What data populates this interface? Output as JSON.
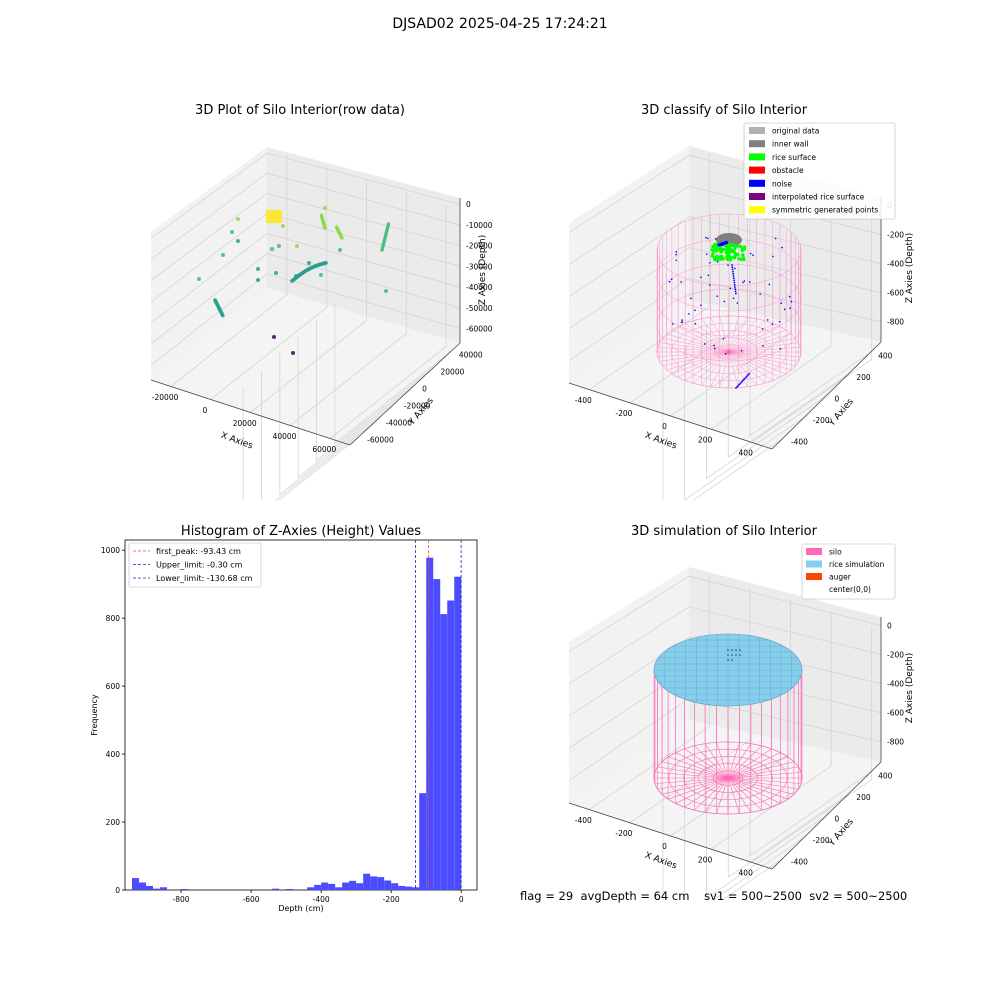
{
  "suptitle": "DJSAD02 2025-04-25 17:24:21",
  "footer": {
    "flag": "flag = 29",
    "avg_depth": "avgDepth = 64 cm",
    "sv1": "sv1 = 500~2500",
    "sv2": "sv2 = 500~2500"
  },
  "colors": {
    "hist_bar": "#4c4cff",
    "peak_line": "#ff4040",
    "limit_line": "#2020cc",
    "silo": "#ff69b4",
    "rice_sim": "#87ceeb",
    "auger": "#ff4500",
    "original": "#b0b0b0",
    "inner_wall": "#808080",
    "rice_surface": "#00ff00",
    "obstacle": "#ff0000",
    "noise": "#0000ff",
    "interpolated": "#800080",
    "symmetric": "#ffff00",
    "viridis": [
      "#440154",
      "#7e4e90",
      "#2a9d8f",
      "#3fbc73",
      "#8fd744",
      "#fde725"
    ]
  },
  "chart_data": [
    {
      "type": "scatter",
      "projection": "3d",
      "title": "3D Plot of Silo Interior(row data)",
      "xlabel": "X Axies",
      "ylabel": "Y Axies",
      "zlabel": "Z Axies (Depth)",
      "x_ticks": [
        "-20000",
        "0",
        "20000",
        "40000",
        "60000"
      ],
      "y_ticks": [
        "-60000",
        "-40000",
        "-20000",
        "0",
        "20000",
        "40000"
      ],
      "z_ticks": [
        "0",
        "-10000",
        "-20000",
        "-30000",
        "-40000",
        "-50000",
        "-60000"
      ],
      "grid": true,
      "colormap": "viridis"
    },
    {
      "type": "scatter",
      "projection": "3d",
      "title": "3D classify of Silo Interior",
      "xlabel": "X Axies",
      "ylabel": "Y Axies",
      "zlabel": "Z Axies (Depth)",
      "x_ticks": [
        "-400",
        "-200",
        "0",
        "200",
        "400"
      ],
      "y_ticks": [
        "-400",
        "-200",
        "0",
        "200",
        "400"
      ],
      "z_ticks": [
        "0",
        "-200",
        "-400",
        "-600",
        "-800"
      ],
      "legend": [
        {
          "label": "original data",
          "color": "#b0b0b0"
        },
        {
          "label": "inner wall",
          "color": "#808080"
        },
        {
          "label": "rice surface",
          "color": "#00ff00"
        },
        {
          "label": "obstacle",
          "color": "#ff0000"
        },
        {
          "label": "noise",
          "color": "#0000ff"
        },
        {
          "label": "interpolated rice surface",
          "color": "#800080"
        },
        {
          "label": "symmetric generated points",
          "color": "#ffff00"
        }
      ],
      "legend_loc": "upper right",
      "grid": true
    },
    {
      "type": "bar",
      "title": "Histogram of Z-Axies (Height) Values",
      "xlabel": "Depth (cm)",
      "ylabel": "Frequency",
      "xlim": [
        -960,
        45
      ],
      "ylim": [
        0,
        1030
      ],
      "x_ticks": [
        "-800",
        "-600",
        "-400",
        "-200",
        "0"
      ],
      "x_tick_values": [
        -800,
        -600,
        -400,
        -200,
        0
      ],
      "y_ticks": [
        "0",
        "200",
        "400",
        "600",
        "800",
        "1000"
      ],
      "y_tick_values": [
        0,
        200,
        400,
        600,
        800,
        1000
      ],
      "bin_width": 20,
      "bins": [
        {
          "x": -920,
          "v": 35
        },
        {
          "x": -900,
          "v": 22
        },
        {
          "x": -880,
          "v": 12
        },
        {
          "x": -860,
          "v": 4
        },
        {
          "x": -840,
          "v": 8
        },
        {
          "x": -780,
          "v": 3
        },
        {
          "x": -520,
          "v": 4
        },
        {
          "x": -480,
          "v": 3
        },
        {
          "x": -420,
          "v": 8
        },
        {
          "x": -400,
          "v": 15
        },
        {
          "x": -380,
          "v": 22
        },
        {
          "x": -360,
          "v": 18
        },
        {
          "x": -340,
          "v": 8
        },
        {
          "x": -320,
          "v": 22
        },
        {
          "x": -300,
          "v": 27
        },
        {
          "x": -280,
          "v": 20
        },
        {
          "x": -260,
          "v": 48
        },
        {
          "x": -240,
          "v": 40
        },
        {
          "x": -220,
          "v": 38
        },
        {
          "x": -200,
          "v": 28
        },
        {
          "x": -180,
          "v": 20
        },
        {
          "x": -160,
          "v": 12
        },
        {
          "x": -140,
          "v": 10
        },
        {
          "x": -120,
          "v": 8
        },
        {
          "x": -100,
          "v": 285
        },
        {
          "x": -80,
          "v": 978
        },
        {
          "x": -60,
          "v": 915
        },
        {
          "x": -40,
          "v": 812
        },
        {
          "x": -20,
          "v": 852
        },
        {
          "x": 0,
          "v": 922
        }
      ],
      "vlines": [
        {
          "label": "first_peak: -93.43 cm",
          "x": -93.43,
          "color": "#ff4040"
        },
        {
          "label": "Upper_limit: -0.30 cm",
          "x": -0.3,
          "color": "#2020cc"
        },
        {
          "label": "Lower_limit: -130.68 cm",
          "x": -130.68,
          "color": "#2020cc"
        }
      ],
      "legend_loc": "upper left"
    },
    {
      "type": "surface",
      "projection": "3d",
      "title": "3D simulation of Silo Interior",
      "xlabel": "X Axies",
      "ylabel": "Y Axies",
      "zlabel": "Z Axies (Depth)",
      "x_ticks": [
        "-400",
        "-200",
        "0",
        "200",
        "400"
      ],
      "y_ticks": [
        "-400",
        "-200",
        "0",
        "200",
        "400"
      ],
      "z_ticks": [
        "0",
        "-200",
        "-400",
        "-600",
        "-800"
      ],
      "legend": [
        {
          "label": "silo",
          "color": "#ff69b4"
        },
        {
          "label": "rice simulation",
          "color": "#87ceeb"
        },
        {
          "label": "auger",
          "color": "#ff4500"
        },
        {
          "label": "center(0,0)",
          "color": ""
        }
      ],
      "legend_loc": "upper right",
      "grid": true
    }
  ]
}
